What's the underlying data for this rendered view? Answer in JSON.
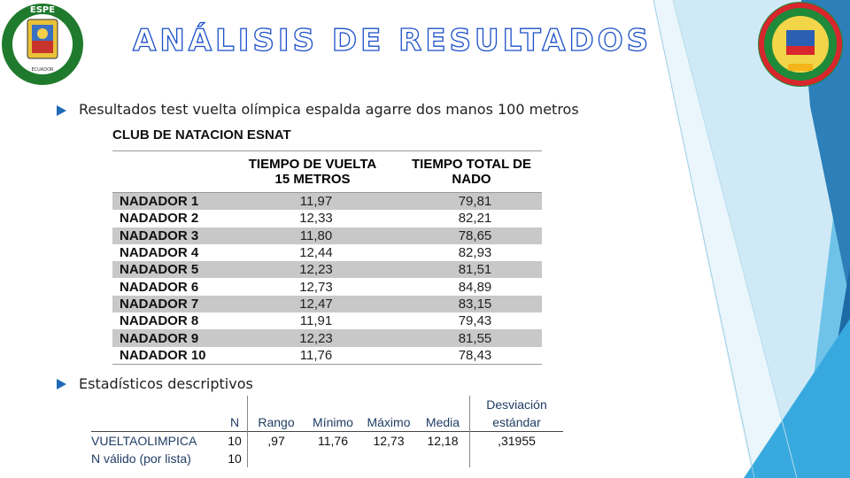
{
  "slide": {
    "title": "ANÁLISIS DE RESULTADOS",
    "bullet1": "Resultados test vuelta olímpica espalda agarre dos manos 100 metros",
    "bullet2": "Estadísticos descriptivos"
  },
  "logos": {
    "left": {
      "top_text": "ESPE",
      "ring_text": "UNIVERSIDAD DE LAS FUERZAS ARMADAS",
      "bottom_text": "ECUADOR"
    },
    "right": {
      "ring_text": "CARRERA EN CIENCIAS DE LA ACTIVIDAD FÍSICA DEPORTES Y RECREACIÓN",
      "badge": "CAFDER"
    }
  },
  "results_table": {
    "club": "CLUB DE NATACION ESNAT",
    "col1_line1": "TIEMPO DE VUELTA",
    "col1_line2": "15 METROS",
    "col2_line1": "TIEMPO TOTAL DE",
    "col2_line2": "NADO",
    "rows": [
      [
        "NADADOR 1",
        "11,97",
        "79,81"
      ],
      [
        "NADADOR 2",
        "12,33",
        "82,21"
      ],
      [
        "NADADOR 3",
        "11,80",
        "78,65"
      ],
      [
        "NADADOR 4",
        "12,44",
        "82,93"
      ],
      [
        "NADADOR 5",
        "12,23",
        "81,51"
      ],
      [
        "NADADOR 6",
        "12,73",
        "84,89"
      ],
      [
        "NADADOR 7",
        "12,47",
        "83,15"
      ],
      [
        "NADADOR 8",
        "11,91",
        "79,43"
      ],
      [
        "NADADOR 9",
        "12,23",
        "81,55"
      ],
      [
        "NADADOR 10",
        "11,76",
        "78,43"
      ]
    ]
  },
  "stats_table": {
    "headers": [
      "N",
      "Rango",
      "Mínimo",
      "Máximo",
      "Media",
      "Desviación",
      "estándar"
    ],
    "row1": [
      "VUELTAOLIMPICA",
      "10",
      ",97",
      "11,76",
      "12,73",
      "12,18",
      ",31955"
    ],
    "row2": [
      "N válido (por lista)",
      "10"
    ]
  },
  "colors": {
    "title_outline": "#1b4fc9",
    "bullet": "#1f6ab6",
    "row_shade": "#c8c8c8",
    "deco_blue": "#1f6fad",
    "deco_light": "#5fc6ea"
  }
}
